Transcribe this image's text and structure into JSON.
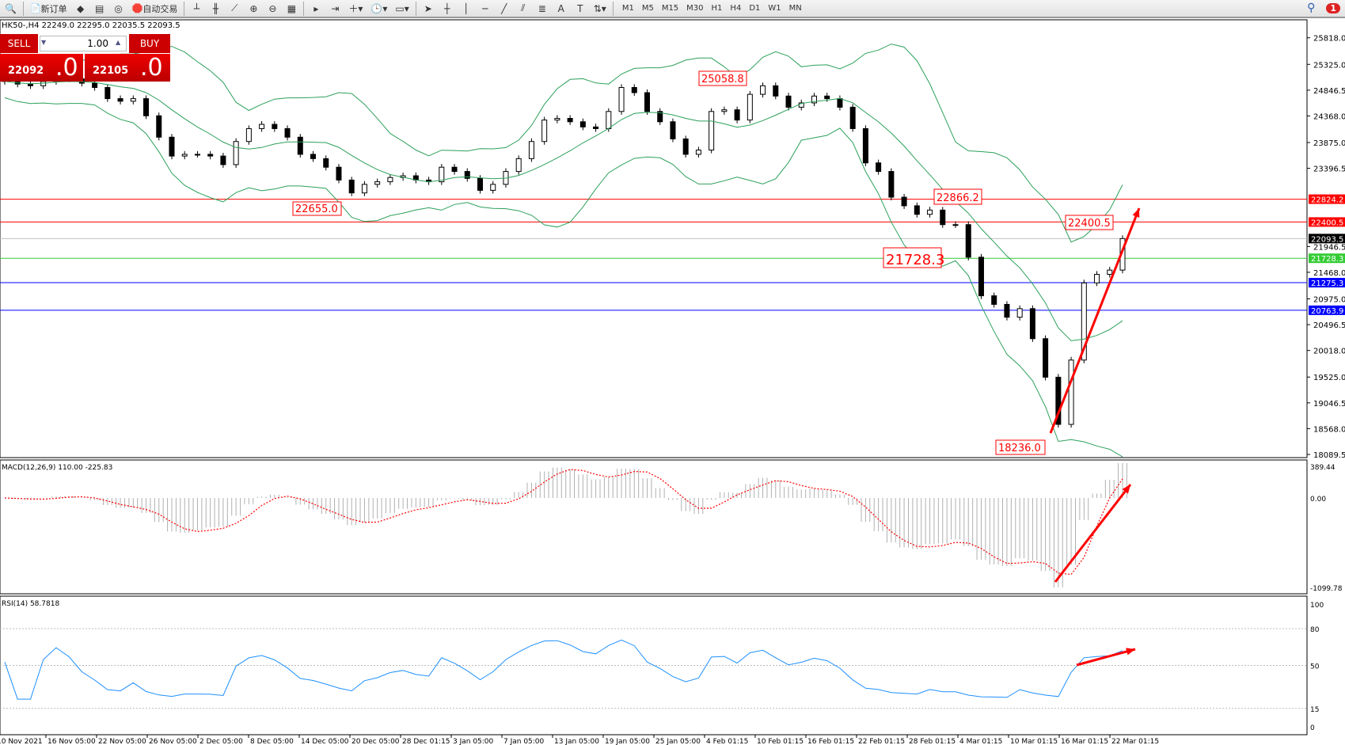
{
  "toolbar": {
    "new_order": "新订单",
    "auto_trading": "自动交易",
    "timeframes": [
      "M1",
      "M5",
      "M15",
      "M30",
      "H1",
      "H4",
      "D1",
      "W1",
      "MN"
    ],
    "notification_count": "1"
  },
  "chart": {
    "header": "HK50-,H4  22249.0 22295.0 22035.5 22093.5",
    "symbol": "HK50-",
    "timeframe": "H4"
  },
  "trade_panel": {
    "sell_label": "SELL",
    "buy_label": "BUY",
    "lot": "1.00",
    "bid_main": "22092",
    "bid_frac": ".0",
    "ask_main": "22105",
    "ask_frac": ".0"
  },
  "price_axis": {
    "ticks": [
      "25818.0",
      "25325.0",
      "24846.5",
      "24368.0",
      "23875.0",
      "23396.5",
      "21946.5",
      "21468.0",
      "20975.0",
      "20496.5",
      "20018.0",
      "19525.0",
      "19046.5",
      "18568.0",
      "18089.5"
    ],
    "range": [
      18089.5,
      25818.0
    ]
  },
  "hlines": [
    {
      "value": "22824.2",
      "color": "#ff0000"
    },
    {
      "value": "22400.5",
      "color": "#ff0000"
    },
    {
      "value": "22093.5",
      "color": "#000000",
      "line": "#c0c0c0"
    },
    {
      "value": "21728.3",
      "color": "#33cc33"
    },
    {
      "value": "21275.3",
      "color": "#0000ff"
    },
    {
      "value": "20763.9",
      "color": "#0000ff"
    }
  ],
  "annotations": [
    {
      "text": "25058.8"
    },
    {
      "text": "22655.0"
    },
    {
      "text": "22866.2"
    },
    {
      "text": "22400.5"
    },
    {
      "text": "21728.3"
    },
    {
      "text": "18236.0"
    }
  ],
  "macd": {
    "label": "MACD(12,26,9) 110.00 -225.83",
    "ticks": [
      "389.44",
      "0.00",
      "-1099.78"
    ],
    "range": [
      -1099.78,
      389.44
    ]
  },
  "rsi": {
    "label": "RSI(14) 58.7818",
    "ticks": [
      "100",
      "80",
      "50",
      "15",
      "0"
    ],
    "levels": [
      80,
      50,
      15
    ]
  },
  "time_axis": [
    "10 Nov 2021",
    "16 Nov 05:00",
    "22 Nov 05:00",
    "26 Nov 05:00",
    "2 Dec 05:00",
    "8 Dec 05:00",
    "14 Dec 05:00",
    "20 Dec 05:00",
    "28 Dec 01:15",
    "3 Jan 05:00",
    "7 Jan 05:00",
    "13 Jan 05:00",
    "19 Jan 05:00",
    "25 Jan 05:00",
    "4 Feb 01:15",
    "10 Feb 01:15",
    "16 Feb 01:15",
    "22 Feb 01:15",
    "28 Feb 01:15",
    "4 Mar 01:15",
    "10 Mar 01:15",
    "16 Mar 01:15",
    "22 Mar 01:15"
  ],
  "colors": {
    "bands": "#2ca05a",
    "macd_signal": "#ff0000",
    "rsi": "#1e90ff",
    "arrow": "#ff0000"
  },
  "chart_data": {
    "type": "candlestick",
    "close": [
      25007,
      24959,
      24928,
      25007,
      25087,
      25055,
      24975,
      24896,
      24689,
      24641,
      24689,
      24371,
      23974,
      23624,
      23656,
      23656,
      23624,
      23465,
      23894,
      24133,
      24212,
      24133,
      23974,
      23656,
      23576,
      23417,
      23179,
      22940,
      23099,
      23147,
      23226,
      23258,
      23179,
      23147,
      23417,
      23338,
      23210,
      22988,
      23099,
      23338,
      23576,
      23894,
      24292,
      24323,
      24260,
      24164,
      24133,
      24451,
      24896,
      24800,
      24451,
      24260,
      23942,
      23656,
      23735,
      24451,
      24482,
      24292,
      24769,
      24928,
      24737,
      24530,
      24610,
      24737,
      24689,
      24530,
      24133,
      23497,
      23338,
      22861,
      22702,
      22543,
      22622,
      22352,
      22352,
      21748,
      21032,
      20873,
      20635,
      20794,
      20237,
      19522,
      18647,
      19840,
      21271,
      21430,
      21509,
      22093.5
    ],
    "indicators": [
      "Bollinger Bands",
      "MACD(12,26,9)",
      "RSI(14)"
    ]
  }
}
